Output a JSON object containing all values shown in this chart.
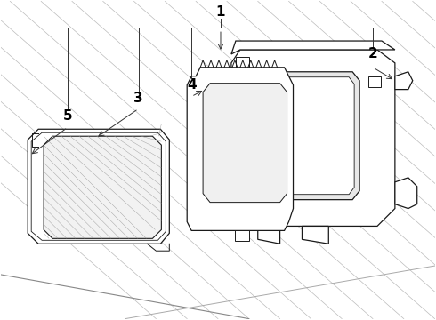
{
  "background_color": "#ffffff",
  "line_color": "#1a1a1a",
  "figsize": [
    4.9,
    3.6
  ],
  "dpi": 100,
  "callout_line_color": "#333333",
  "diagonal_line_color": "#bbbbbb",
  "font_size": 11
}
